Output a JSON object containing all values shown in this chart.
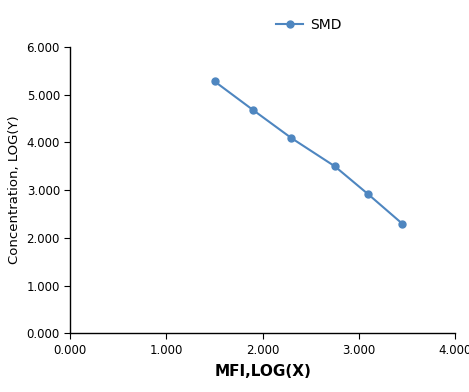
{
  "x": [
    1.5,
    1.9,
    2.3,
    2.75,
    3.1,
    3.45
  ],
  "y": [
    5.28,
    4.68,
    4.09,
    3.5,
    2.91,
    2.3
  ],
  "line_color": "#4e86c0",
  "marker": "o",
  "marker_size": 5,
  "line_width": 1.5,
  "legend_label": "SMD",
  "xlabel": "MFI,LOG(X)",
  "ylabel": "Concentration, LOG(Y)",
  "xlim": [
    0.0,
    4.0
  ],
  "ylim": [
    0.0,
    6.0
  ],
  "xticks": [
    0.0,
    1.0,
    2.0,
    3.0,
    4.0
  ],
  "yticks": [
    0.0,
    1.0,
    2.0,
    3.0,
    4.0,
    5.0,
    6.0
  ],
  "xlabel_fontsize": 11,
  "ylabel_fontsize": 9.5,
  "tick_label_fontsize": 8.5,
  "legend_fontsize": 10,
  "background_color": "#ffffff",
  "spine_color": "#000000"
}
